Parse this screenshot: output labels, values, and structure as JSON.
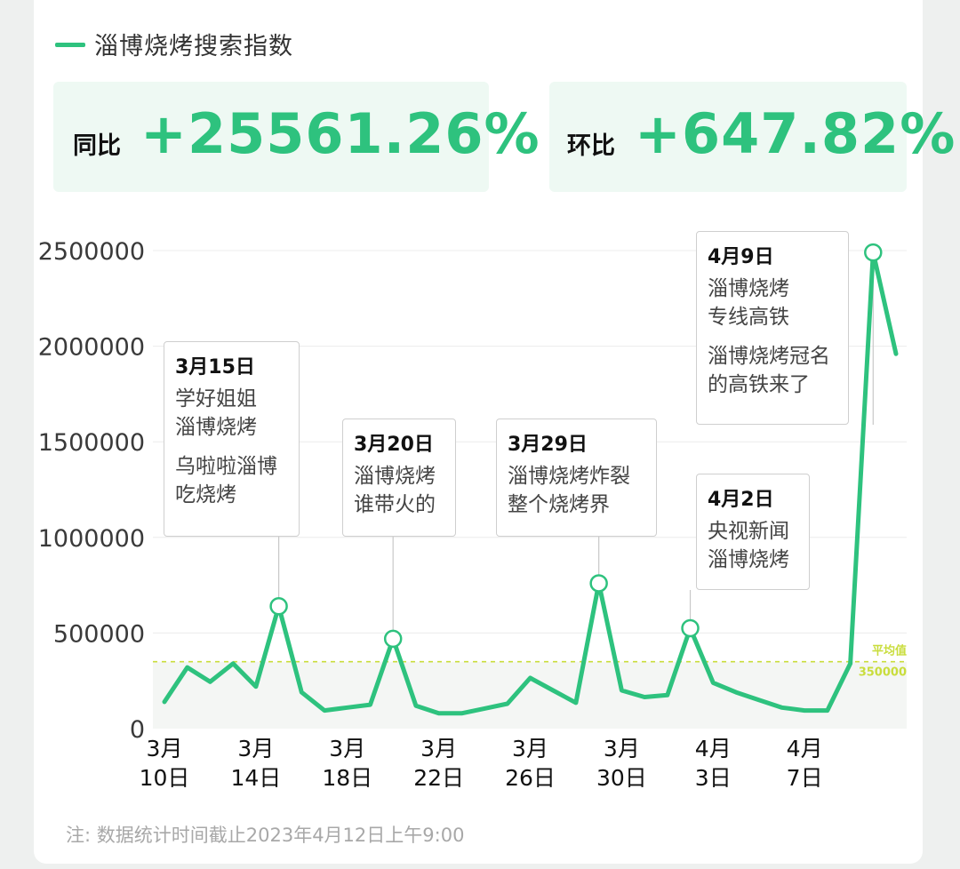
{
  "legend": {
    "label": "淄博烧烤搜索指数",
    "color": "#2ec27e"
  },
  "stats": {
    "yoy_label": "同比",
    "yoy_value": "+25561.26%",
    "mom_label": "环比",
    "mom_value": "+647.82%"
  },
  "note": "注: 数据统计时间截止2023年4月12日上午9:00",
  "callouts": [
    {
      "date": "3月15日",
      "lines": [
        "学好姐姐\n淄博烧烤",
        "乌啦啦淄博\n吃烧烤"
      ]
    },
    {
      "date": "3月20日",
      "lines": [
        "淄博烧烤\n谁带火的"
      ]
    },
    {
      "date": "3月29日",
      "lines": [
        "淄博烧烤炸裂\n整个烧烤界"
      ]
    },
    {
      "date": "4月2日",
      "lines": [
        "央视新闻\n淄博烧烤"
      ]
    },
    {
      "date": "4月9日",
      "lines": [
        "淄博烧烤\n专线高铁",
        "淄博烧烤冠名\n的高铁来了"
      ]
    }
  ],
  "chart_data": {
    "type": "line",
    "series": [
      {
        "name": "淄博烧烤搜索指数",
        "color": "#2ec27e",
        "values": [
          140000,
          320000,
          245000,
          340000,
          220000,
          640000,
          190000,
          95000,
          110000,
          125000,
          470000,
          120000,
          80000,
          80000,
          105000,
          130000,
          265000,
          200000,
          135000,
          760000,
          200000,
          165000,
          175000,
          525000,
          240000,
          190000,
          150000,
          110000,
          95000,
          95000,
          340000,
          2490000,
          1960000
        ]
      }
    ],
    "x_start": "3月10日",
    "x_end": "4月11日",
    "x_ticks": [
      {
        "index": 0,
        "month": "3月",
        "day": "10日"
      },
      {
        "index": 4,
        "month": "3月",
        "day": "14日"
      },
      {
        "index": 8,
        "month": "3月",
        "day": "18日"
      },
      {
        "index": 12,
        "month": "3月",
        "day": "22日"
      },
      {
        "index": 16,
        "month": "3月",
        "day": "26日"
      },
      {
        "index": 20,
        "month": "3月",
        "day": "30日"
      },
      {
        "index": 24,
        "month": "4月",
        "day": "3日"
      },
      {
        "index": 28,
        "month": "4月",
        "day": "7日"
      }
    ],
    "y_ticks": [
      0,
      500000,
      1000000,
      1500000,
      2000000,
      2500000
    ],
    "ylim": [
      0,
      2500000
    ],
    "grid": true,
    "marked_points": [
      5,
      10,
      19,
      23,
      31
    ],
    "average": {
      "label": "平均值",
      "value": 350000,
      "value_label": "350000",
      "color": "#c9dd3c"
    }
  }
}
